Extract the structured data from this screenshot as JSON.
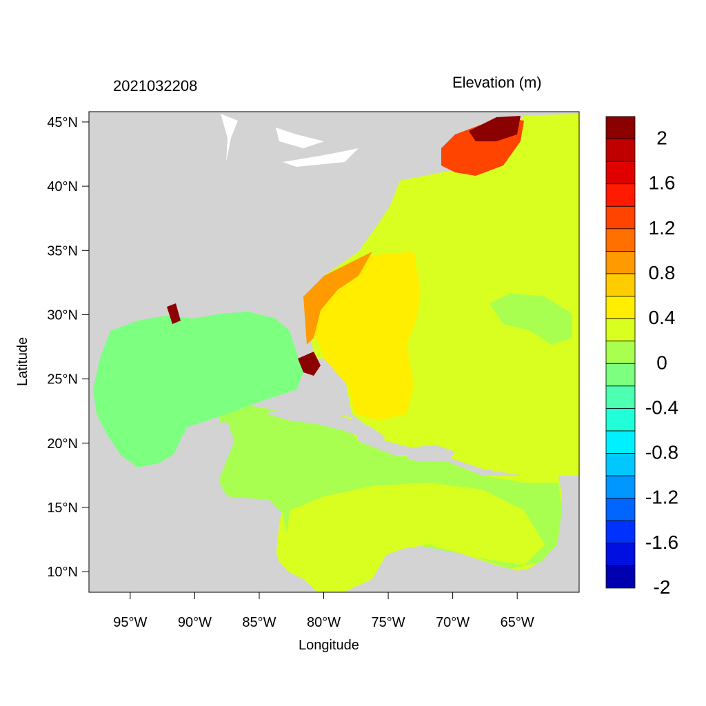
{
  "header": {
    "timestamp": "2021032208",
    "variable_title": "Elevation (m)"
  },
  "axes": {
    "xlabel": "Longitude",
    "ylabel": "Latitude",
    "lon_ticks": [
      {
        "lon": -95,
        "label": "95°W"
      },
      {
        "lon": -90,
        "label": "90°W"
      },
      {
        "lon": -85,
        "label": "85°W"
      },
      {
        "lon": -80,
        "label": "80°W"
      },
      {
        "lon": -75,
        "label": "75°W"
      },
      {
        "lon": -70,
        "label": "70°W"
      },
      {
        "lon": -65,
        "label": "65°W"
      }
    ],
    "lat_ticks": [
      {
        "lat": 45,
        "label": "45°N"
      },
      {
        "lat": 40,
        "label": "40°N"
      },
      {
        "lat": 35,
        "label": "35°N"
      },
      {
        "lat": 30,
        "label": "30°N"
      },
      {
        "lat": 25,
        "label": "25°N"
      },
      {
        "lat": 20,
        "label": "20°N"
      },
      {
        "lat": 15,
        "label": "15°N"
      },
      {
        "lat": 10,
        "label": "10°N"
      }
    ],
    "lon_range": [
      -98.2,
      -60.2
    ],
    "lat_range": [
      8.4,
      45.8
    ]
  },
  "colorbar": {
    "labels": [
      "2",
      "1.6",
      "1.2",
      "0.8",
      "0.4",
      "0",
      "-0.4",
      "-0.8",
      "-1.2",
      "-1.6",
      "-2"
    ],
    "colors_top_to_bottom": [
      "#8b0000",
      "#c00000",
      "#e00000",
      "#ff1a00",
      "#ff4400",
      "#ff7000",
      "#ff9a00",
      "#ffcc00",
      "#ffee00",
      "#d9ff20",
      "#a8ff50",
      "#7dff80",
      "#4dffb0",
      "#20ffd8",
      "#00f0ff",
      "#00c8ff",
      "#0096ff",
      "#0064ff",
      "#0032ff",
      "#0010e0",
      "#0000b0"
    ]
  },
  "colors": {
    "land": "#d3d3d3",
    "gulf": "#7dff80",
    "caribbean": "#a8ff50",
    "atlantic": "#d9ff20",
    "gulfstream": "#ffee00",
    "surge_high": "#8b0000"
  }
}
